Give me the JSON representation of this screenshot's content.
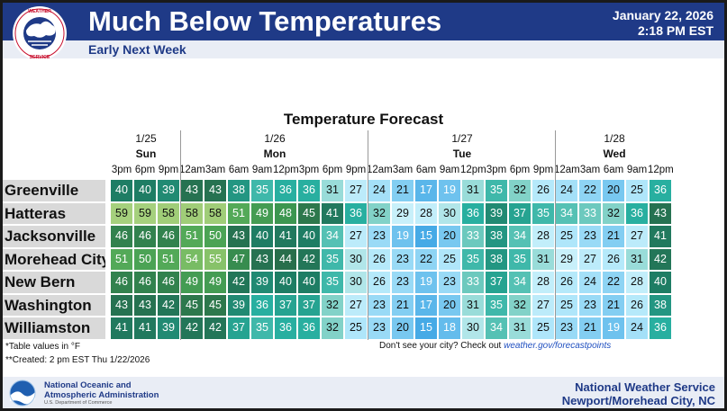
{
  "header": {
    "title": "Much Below Temperatures",
    "subtitle": "Early Next Week",
    "date": "January 22, 2026",
    "time": "2:18 PM EST",
    "logo_text": "NATIONAL WEATHER SERVICE"
  },
  "table": {
    "title": "Temperature Forecast",
    "days": [
      {
        "date": "1/25",
        "day": "Sun",
        "times": [
          "3pm",
          "6pm",
          "9pm"
        ]
      },
      {
        "date": "1/26",
        "day": "Mon",
        "times": [
          "12am",
          "3am",
          "6am",
          "9am",
          "12pm",
          "3pm",
          "6pm",
          "9pm"
        ]
      },
      {
        "date": "1/27",
        "day": "Tue",
        "times": [
          "12am",
          "3am",
          "6am",
          "9am",
          "12pm",
          "3pm",
          "6pm",
          "9pm"
        ]
      },
      {
        "date": "1/28",
        "day": "Wed",
        "times": [
          "12am",
          "3am",
          "6am",
          "9am",
          "12pm"
        ]
      }
    ],
    "rows": [
      {
        "city": "Greenville",
        "values": [
          40,
          40,
          39,
          43,
          43,
          38,
          35,
          36,
          36,
          31,
          27,
          24,
          21,
          17,
          19,
          31,
          35,
          32,
          26,
          24,
          22,
          20,
          25,
          36
        ]
      },
      {
        "city": "Hatteras",
        "values": [
          59,
          59,
          58,
          58,
          58,
          51,
          49,
          48,
          45,
          41,
          36,
          32,
          29,
          28,
          30,
          36,
          39,
          37,
          35,
          34,
          33,
          32,
          36,
          43
        ]
      },
      {
        "city": "Jacksonville",
        "values": [
          46,
          46,
          46,
          51,
          50,
          43,
          40,
          41,
          40,
          34,
          27,
          23,
          19,
          15,
          20,
          33,
          38,
          34,
          28,
          25,
          23,
          21,
          27,
          41
        ]
      },
      {
        "city": "Morehead City",
        "values": [
          51,
          50,
          51,
          54,
          55,
          47,
          43,
          44,
          42,
          35,
          30,
          26,
          23,
          22,
          25,
          35,
          38,
          35,
          31,
          29,
          27,
          26,
          31,
          42
        ]
      },
      {
        "city": "New Bern",
        "values": [
          46,
          46,
          46,
          49,
          49,
          42,
          39,
          40,
          40,
          35,
          30,
          26,
          23,
          19,
          23,
          33,
          37,
          34,
          28,
          26,
          24,
          22,
          28,
          40
        ]
      },
      {
        "city": "Washington",
        "values": [
          43,
          43,
          42,
          45,
          45,
          39,
          36,
          37,
          37,
          32,
          27,
          23,
          21,
          17,
          20,
          31,
          35,
          32,
          27,
          25,
          23,
          21,
          26,
          38
        ]
      },
      {
        "city": "Williamston",
        "values": [
          41,
          41,
          39,
          42,
          42,
          37,
          35,
          36,
          36,
          32,
          25,
          23,
          20,
          15,
          18,
          30,
          34,
          31,
          25,
          23,
          21,
          19,
          24,
          36
        ]
      }
    ]
  },
  "notes": {
    "footnote1": "*Table values in °F",
    "footnote2": "**Created: 2 pm EST Thu 1/22/2026",
    "cta_text": "Don't see your city? Check out ",
    "cta_link": "weather.gov/forecastpoints"
  },
  "footer": {
    "noaa_line1": "National Oceanic and",
    "noaa_line2": "Atmospheric Administration",
    "noaa_dept": "U.S. Department of Commerce",
    "nws_line1": "National Weather Service",
    "nws_line2": "Newport/Morehead City, NC"
  },
  "colors": {
    "header_bg": "#1f3a87",
    "subbar_bg": "#e9edf5",
    "row_label_bg": "#d9d9d9"
  }
}
